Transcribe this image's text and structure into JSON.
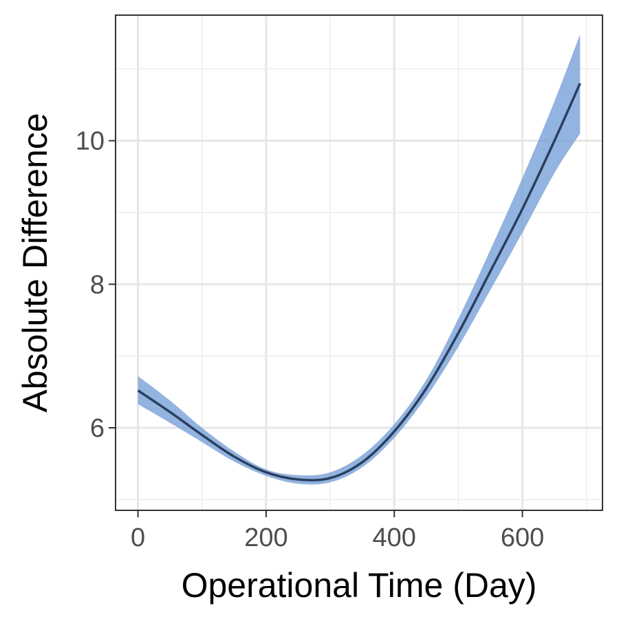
{
  "chart_data": {
    "type": "line",
    "xlabel": "Operational Time (Day)",
    "ylabel": "Absolute Difference",
    "xlim": [
      -35,
      725
    ],
    "ylim": [
      4.85,
      11.75
    ],
    "x_ticks": [
      0,
      200,
      400,
      600
    ],
    "x_tick_labels": [
      "0",
      "200",
      "400",
      "600"
    ],
    "y_ticks": [
      6,
      8,
      10
    ],
    "y_tick_labels": [
      "6",
      "8",
      "10"
    ],
    "grid": true,
    "legend": "none",
    "colors": {
      "line": "#2a3f5f",
      "ribbon": "#6f9ad6",
      "panel_border": "#333333"
    },
    "series": [
      {
        "x": [
          0,
          50,
          100,
          150,
          200,
          250,
          300,
          350,
          400,
          450,
          500,
          550,
          600,
          650,
          690
        ],
        "y": [
          6.52,
          6.22,
          5.9,
          5.6,
          5.38,
          5.28,
          5.3,
          5.52,
          5.95,
          6.55,
          7.32,
          8.18,
          9.05,
          10.0,
          10.8
        ],
        "lower": [
          6.33,
          6.07,
          5.8,
          5.53,
          5.33,
          5.22,
          5.24,
          5.45,
          5.86,
          6.43,
          7.13,
          7.92,
          8.72,
          9.55,
          10.1
        ],
        "upper": [
          6.72,
          6.38,
          6.0,
          5.67,
          5.42,
          5.34,
          5.38,
          5.62,
          6.05,
          6.67,
          7.52,
          8.48,
          9.48,
          10.55,
          11.48
        ]
      }
    ]
  }
}
